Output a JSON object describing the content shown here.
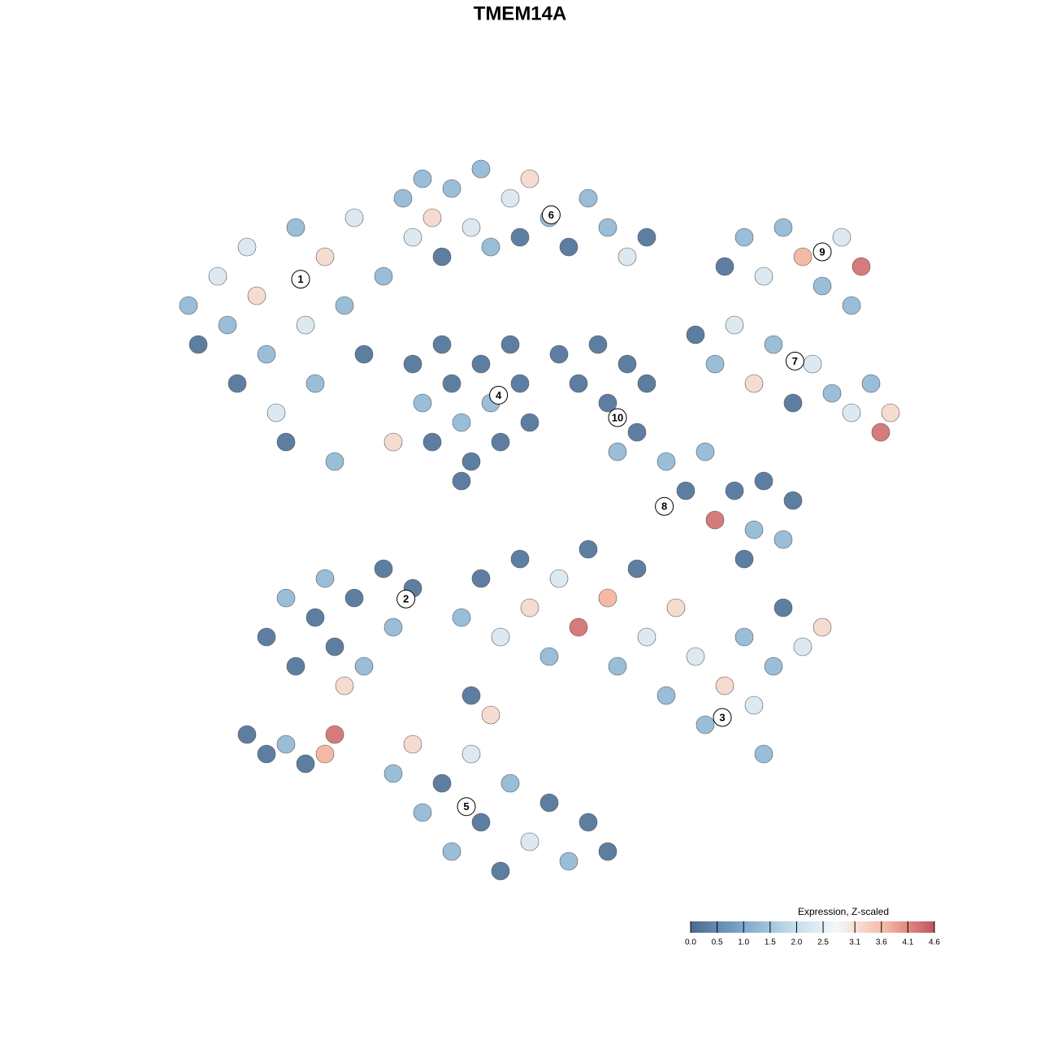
{
  "chart_data": {
    "type": "scatter",
    "title": "TMEM14A",
    "xlim": [
      -40,
      40
    ],
    "ylim": [
      -40,
      40
    ],
    "x": [
      -34,
      -33,
      -31,
      -30,
      -29,
      -28,
      -27,
      -26,
      -25,
      -24,
      -23,
      -22,
      -21,
      -20,
      -19,
      -18,
      -17,
      -16,
      -14,
      -13,
      -12,
      -11,
      -10,
      -9,
      -8,
      -7,
      -5,
      -4,
      -3,
      -1,
      0,
      1,
      3,
      5,
      7,
      9,
      11,
      13,
      -11,
      -10,
      -9,
      -8,
      -7,
      -6,
      -5,
      -4,
      -3,
      -2,
      -1,
      0,
      1,
      -6,
      4,
      6,
      8,
      9,
      11,
      12,
      10,
      13,
      21,
      23,
      25,
      27,
      29,
      31,
      33,
      35,
      34,
      18,
      20,
      22,
      24,
      26,
      28,
      30,
      32,
      34,
      36,
      38,
      37,
      15,
      17,
      19,
      20,
      22,
      24,
      25,
      27,
      28,
      23,
      -26,
      -24,
      -23,
      -21,
      -20,
      -19,
      -17,
      -16,
      -14,
      -13,
      -11,
      -18,
      -28,
      -26,
      -24,
      -22,
      -20,
      -19,
      -6,
      -4,
      -2,
      0,
      1,
      3,
      4,
      6,
      7,
      9,
      10,
      12,
      13,
      15,
      16,
      18,
      19,
      21,
      23,
      24,
      26,
      27,
      29,
      31,
      25,
      -5,
      -13,
      -11,
      -10,
      -8,
      -7,
      -5,
      -4,
      -2,
      -1,
      1,
      3,
      5,
      7,
      9,
      -3
    ],
    "y": [
      22,
      18,
      25,
      20,
      14,
      28,
      23,
      17,
      11,
      8,
      30,
      20,
      14,
      27,
      6,
      22,
      31,
      17,
      25,
      8,
      33,
      29,
      35,
      31,
      27,
      34,
      30,
      36,
      28,
      33,
      29,
      35,
      31,
      28,
      33,
      30,
      27,
      29,
      16,
      12,
      8,
      18,
      14,
      10,
      6,
      16,
      12,
      8,
      18,
      14,
      10,
      4,
      17,
      14,
      18,
      12,
      16,
      9,
      7,
      14,
      26,
      29,
      25,
      30,
      27,
      24,
      29,
      26,
      22,
      19,
      16,
      20,
      14,
      18,
      12,
      16,
      13,
      11,
      14,
      11,
      9,
      6,
      3,
      7,
      0,
      3,
      -1,
      4,
      -2,
      2,
      -4,
      -12,
      -8,
      -15,
      -10,
      -6,
      -13,
      -8,
      -15,
      -5,
      -11,
      -7,
      -17,
      -22,
      -24,
      -23,
      -25,
      -24,
      -22,
      -10,
      -6,
      -12,
      -4,
      -9,
      -14,
      -6,
      -11,
      -3,
      -8,
      -15,
      -5,
      -12,
      -18,
      -9,
      -14,
      -21,
      -17,
      -12,
      -19,
      -15,
      -9,
      -13,
      -11,
      -24,
      -18,
      -26,
      -23,
      -30,
      -27,
      -34,
      -24,
      -31,
      -36,
      -27,
      -33,
      -29,
      -35,
      -31,
      -34,
      -20
    ],
    "values": [
      1.3,
      0.2,
      2.3,
      1.3,
      0.2,
      2.3,
      3.2,
      1.3,
      2.3,
      0.2,
      1.3,
      2.3,
      1.3,
      3.2,
      1.3,
      1.3,
      2.3,
      0.2,
      1.3,
      3.2,
      1.3,
      2.3,
      1.3,
      3.2,
      0.2,
      1.3,
      2.3,
      1.3,
      1.3,
      2.3,
      0.2,
      3.2,
      1.3,
      0.2,
      1.3,
      1.3,
      2.3,
      0.2,
      0.2,
      1.3,
      0.2,
      0.2,
      0.2,
      1.3,
      0.2,
      0.2,
      1.3,
      0.2,
      0.2,
      0.2,
      0.2,
      0.2,
      0.2,
      0.2,
      0.2,
      0.2,
      0.2,
      0.2,
      1.3,
      0.2,
      0.2,
      1.3,
      2.3,
      1.3,
      3.7,
      1.3,
      2.3,
      4.3,
      1.3,
      0.2,
      1.3,
      2.3,
      3.2,
      1.3,
      0.2,
      2.3,
      1.3,
      2.3,
      1.3,
      3.2,
      4.3,
      1.3,
      0.2,
      1.3,
      4.3,
      0.2,
      1.3,
      0.2,
      1.3,
      0.2,
      0.2,
      0.2,
      1.3,
      0.2,
      0.2,
      1.3,
      0.2,
      0.2,
      1.3,
      0.2,
      1.3,
      0.2,
      3.2,
      0.2,
      0.2,
      1.3,
      0.2,
      3.7,
      4.3,
      1.3,
      0.2,
      2.3,
      0.2,
      3.2,
      1.3,
      2.3,
      4.3,
      0.2,
      3.7,
      1.3,
      0.2,
      2.3,
      1.3,
      3.2,
      2.3,
      1.3,
      3.2,
      1.3,
      2.3,
      1.3,
      0.2,
      2.3,
      3.2,
      1.3,
      0.2,
      1.3,
      3.2,
      1.3,
      0.2,
      1.3,
      2.3,
      0.2,
      0.2,
      1.3,
      2.3,
      0.2,
      1.3,
      0.2,
      0.2,
      3.2
    ],
    "clusters": {
      "labels": [
        "1",
        "6",
        "9",
        "4",
        "10",
        "7",
        "8",
        "2",
        "3",
        "5"
      ],
      "x": [
        -22.5,
        3.2,
        31,
        -2.2,
        10,
        28.2,
        14.8,
        -11.7,
        20.75,
        -5.5
      ],
      "y": [
        24.7,
        31.3,
        27.5,
        12.8,
        10.5,
        16.3,
        1.4,
        -8.1,
        -20.25,
        -29.4
      ]
    },
    "legend": {
      "title": "Expression, Z-scaled",
      "clim": [
        0,
        4.6
      ],
      "colors": [
        "#4a6b8f",
        "#79a3c9",
        "#bcd9e8",
        "#f7f7f7",
        "#f4b8a1",
        "#c6525e"
      ],
      "ticks": [
        {
          "value": 0,
          "label": "0.0"
        },
        0.5,
        {
          "value": 1,
          "label": "1.0"
        },
        1.5,
        {
          "value": 2,
          "label": "2.0"
        },
        2.5,
        3.1,
        3.6,
        4.1,
        4.6
      ]
    }
  }
}
